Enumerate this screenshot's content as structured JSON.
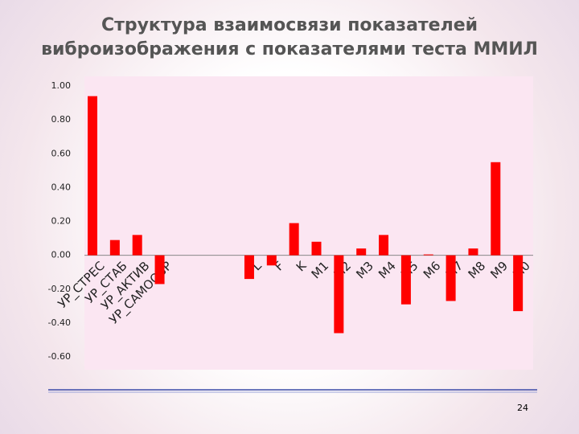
{
  "chart_data": {
    "type": "bar",
    "title": [
      "Структура взаимосвязи показателей",
      "виброизображения с  показателями теста ММИЛ"
    ],
    "categories": [
      "УР_СТРЕС",
      "УР_СТАБ",
      "УР_АКТИВ",
      "УР_САМООБР",
      null,
      null,
      null,
      "L",
      "F",
      "K",
      "M1",
      "M2",
      "M3",
      "M4",
      "M5",
      "M6",
      "M7",
      "M8",
      "M9",
      "M0"
    ],
    "values": [
      0.94,
      0.09,
      0.12,
      -0.17,
      null,
      null,
      null,
      -0.14,
      -0.06,
      0.19,
      0.08,
      -0.46,
      0.04,
      0.12,
      -0.29,
      0.005,
      -0.27,
      0.04,
      0.55,
      -0.33
    ],
    "color": "#ff0000",
    "ylim": [
      -0.6,
      1.0
    ],
    "yticks": [
      {
        "value": -0.6,
        "label": "-0.60"
      },
      {
        "value": -0.4,
        "label": "-0.40"
      },
      {
        "value": -0.2,
        "label": "-0.20"
      },
      {
        "value": 0,
        "label": "0.00"
      },
      {
        "value": 0.2,
        "label": "0.20"
      },
      {
        "value": 0.4,
        "label": "0.40"
      },
      {
        "value": 0.6,
        "label": "0.60"
      },
      {
        "value": 0.8,
        "label": "0.80"
      },
      {
        "value": 1.0,
        "label": "1.00"
      }
    ],
    "grid": false
  },
  "slide_number": "24"
}
